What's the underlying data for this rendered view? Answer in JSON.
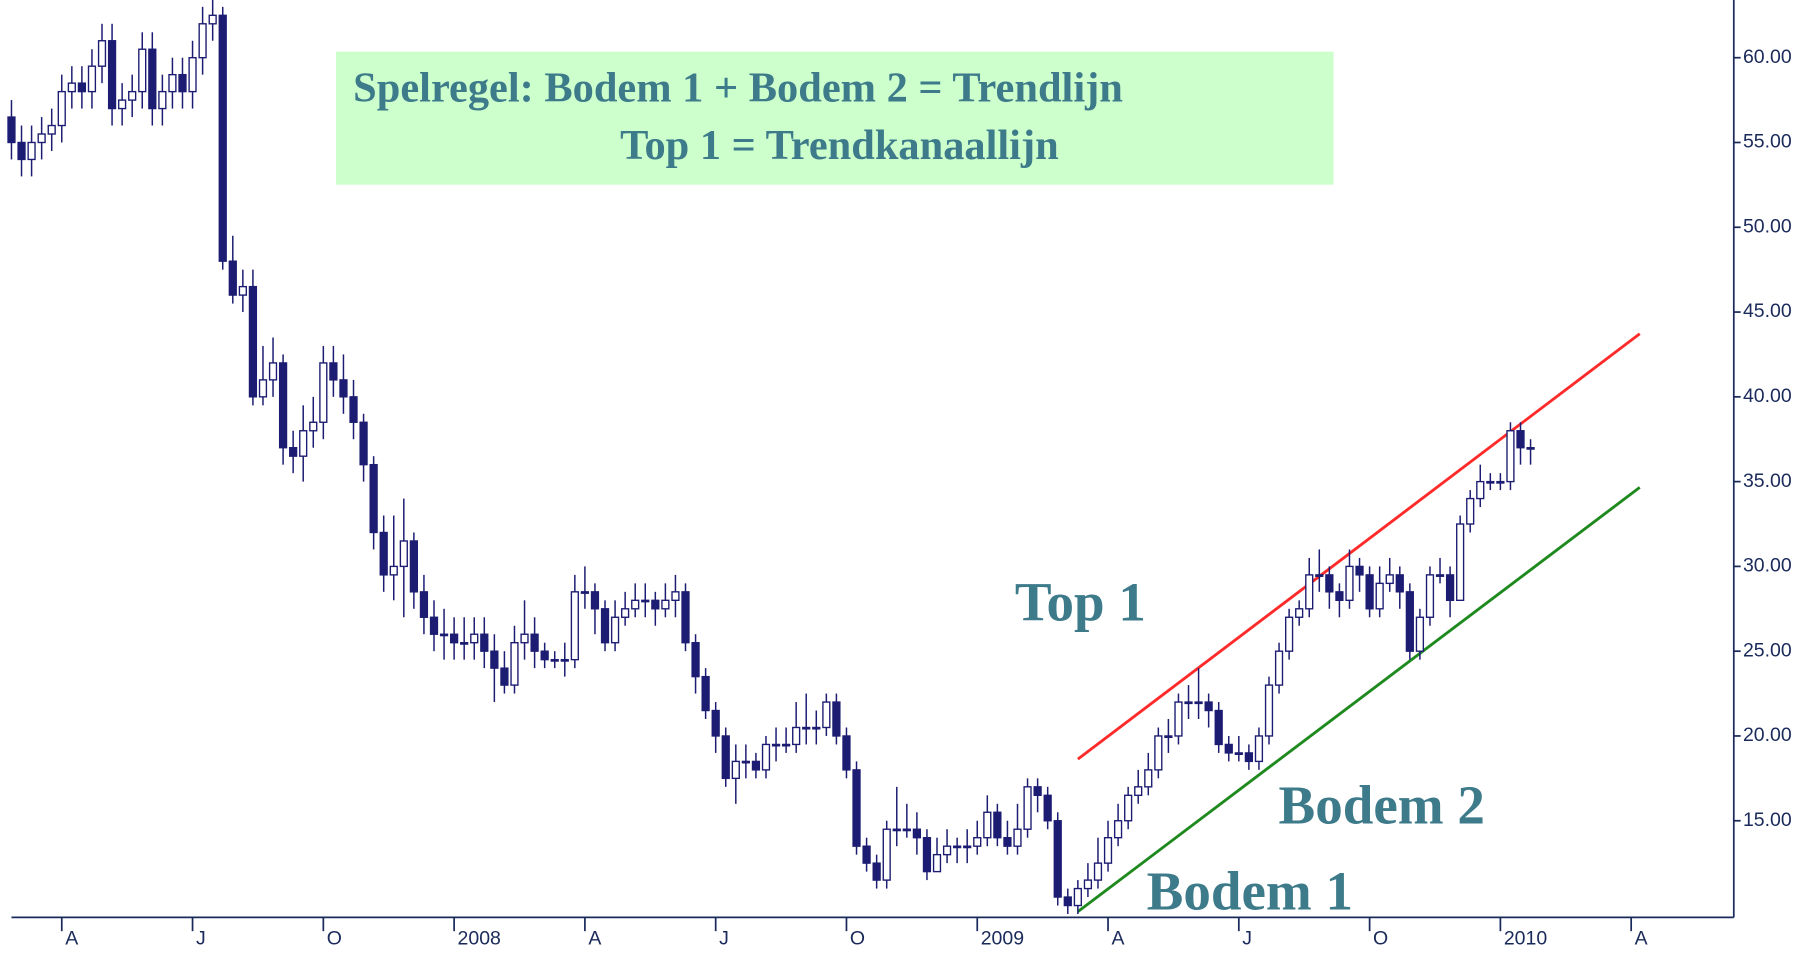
{
  "chart_data": {
    "type": "candlestick",
    "annotations": [
      "Spelregel: Bodem 1 + Bodem 2 = Trendlijn",
      "Top 1 = Trendkanaallijn",
      "Top 1",
      "Bodem 2",
      "Bodem 1"
    ],
    "up_color": "#ffffff",
    "down_color": "#1c1c72",
    "line_color": "#1c1c72",
    "ylim": [
      9.3,
      63.4
    ],
    "yticks": [
      {
        "value": 15,
        "label": "15.00"
      },
      {
        "value": 20,
        "label": "20.00"
      },
      {
        "value": 25,
        "label": "25.00"
      },
      {
        "value": 30,
        "label": "30.00"
      },
      {
        "value": 35,
        "label": "35.00"
      },
      {
        "value": 40,
        "label": "40.00"
      },
      {
        "value": 45,
        "label": "45.00"
      },
      {
        "value": 50,
        "label": "50.00"
      },
      {
        "value": 55,
        "label": "55.00"
      },
      {
        "value": 60,
        "label": "60.00"
      }
    ],
    "categories": [
      null,
      null,
      null,
      null,
      null,
      "A",
      null,
      null,
      null,
      null,
      null,
      null,
      null,
      null,
      null,
      null,
      null,
      null,
      "J",
      null,
      null,
      null,
      null,
      null,
      null,
      null,
      null,
      null,
      null,
      null,
      null,
      "O",
      null,
      null,
      null,
      null,
      null,
      null,
      null,
      null,
      null,
      null,
      null,
      null,
      "2008",
      null,
      null,
      null,
      null,
      null,
      null,
      null,
      null,
      null,
      null,
      null,
      null,
      "A",
      null,
      null,
      null,
      null,
      null,
      null,
      null,
      null,
      null,
      null,
      null,
      null,
      "J",
      null,
      null,
      null,
      null,
      null,
      null,
      null,
      null,
      null,
      null,
      null,
      null,
      "O",
      null,
      null,
      null,
      null,
      null,
      null,
      null,
      null,
      null,
      null,
      null,
      null,
      "2009",
      null,
      null,
      null,
      null,
      null,
      null,
      null,
      null,
      null,
      null,
      null,
      null,
      "A",
      null,
      null,
      null,
      null,
      null,
      null,
      null,
      null,
      null,
      null,
      null,
      null,
      "J",
      null,
      null,
      null,
      null,
      null,
      null,
      null,
      null,
      null,
      null,
      null,
      null,
      "O",
      null,
      null,
      null,
      null,
      null,
      null,
      null,
      null,
      null,
      null,
      null,
      null,
      "2010",
      null,
      null,
      null,
      null,
      null,
      null,
      null,
      null,
      null,
      null,
      null,
      null,
      "A",
      null,
      null,
      null,
      null,
      null,
      null,
      null,
      null,
      null,
      null
    ],
    "open": [
      56.5,
      55,
      54,
      55,
      55.5,
      56,
      58,
      58.5,
      58,
      59.5,
      61,
      57,
      57.5,
      58,
      60.5,
      57,
      58,
      59,
      58,
      60,
      62,
      62.5,
      48,
      46,
      46.5,
      40,
      41,
      42,
      37,
      36.5,
      38,
      38.5,
      42,
      41,
      40,
      38.5,
      36,
      32,
      29.5,
      30,
      31.5,
      28.5,
      27,
      26,
      26,
      25.5,
      25.5,
      26,
      25,
      24,
      23,
      25.5,
      26,
      25,
      24.5,
      24.5,
      24.5,
      28.5,
      28.5,
      27.5,
      25.5,
      27,
      27.5,
      28,
      28,
      27.5,
      28,
      28.5,
      25.5,
      23.5,
      21.5,
      20,
      17.5,
      18.5,
      18.5,
      18,
      19.5,
      19.5,
      19.5,
      20.5,
      20.5,
      20.5,
      22,
      20,
      18,
      13.5,
      12.5,
      11.5,
      14.5,
      14.5,
      14.5,
      14,
      12,
      13,
      13.5,
      13.5,
      13.5,
      14,
      15.5,
      14,
      13.5,
      14.5,
      17,
      16.5,
      15,
      10.5,
      10,
      11,
      11.5,
      12.5,
      14,
      15,
      16.5,
      17,
      18,
      20,
      20,
      22,
      22,
      22,
      21.5,
      19.5,
      19,
      19,
      18.5,
      20,
      23,
      25,
      27,
      27.5,
      29.5,
      29.5,
      28.5,
      28,
      30,
      29.5,
      27.5,
      29,
      29.5,
      28.5,
      25,
      27,
      29.5,
      29.5,
      28,
      32.5,
      34,
      35,
      35,
      35,
      38,
      37,
      null,
      null,
      null,
      null,
      null,
      null,
      null,
      null,
      null,
      null,
      null,
      null,
      null,
      null,
      null,
      null,
      null,
      null,
      null,
      null
    ],
    "high": [
      57.5,
      56,
      56,
      56.5,
      57,
      59,
      59.5,
      59.5,
      60.5,
      62,
      62,
      58.5,
      59,
      61.5,
      61.5,
      59,
      60,
      60,
      61,
      63,
      63.5,
      63,
      49.5,
      47.5,
      47.5,
      43,
      43.5,
      42.5,
      38,
      39.5,
      40,
      43,
      43,
      42.5,
      41,
      39,
      36.5,
      33,
      33,
      34,
      32,
      29.5,
      28,
      27.5,
      27,
      27,
      27,
      27,
      26,
      25,
      26.5,
      28,
      27,
      25.5,
      25,
      25.5,
      29.5,
      30,
      29,
      28,
      28,
      28.5,
      29,
      29,
      28.5,
      29,
      29.5,
      29,
      26,
      24,
      22,
      20.5,
      19.5,
      19.5,
      19,
      20,
      20.5,
      20.5,
      22,
      22.5,
      21.5,
      22.5,
      22.5,
      20.5,
      18.5,
      14,
      13,
      15,
      17,
      16,
      15.5,
      14.5,
      14,
      14.5,
      14,
      14.5,
      15,
      16.5,
      16,
      15,
      16,
      17.5,
      17.5,
      17,
      15.5,
      11,
      11.5,
      12.5,
      14,
      15,
      16,
      17,
      18,
      19,
      20.5,
      21,
      22.5,
      23,
      24,
      22.5,
      22,
      20,
      20,
      19.5,
      20.5,
      23.5,
      25.5,
      27.5,
      28,
      30.5,
      31,
      30,
      29,
      31,
      30.5,
      30,
      30,
      30.5,
      30,
      29,
      27.5,
      30,
      30.5,
      30,
      33,
      34.5,
      36,
      35.5,
      35.5,
      38.5,
      38.5,
      37.5,
      null,
      null,
      null,
      null,
      null,
      null,
      null,
      null,
      null,
      null,
      null,
      null,
      null,
      null,
      null,
      null,
      null,
      null,
      null,
      null
    ],
    "low": [
      54,
      53,
      53,
      54,
      54.5,
      55,
      57,
      57,
      57,
      58.5,
      56,
      56,
      56.5,
      57,
      56,
      56,
      57,
      57,
      57,
      59,
      61,
      47.5,
      45.5,
      45,
      39.5,
      39.5,
      40,
      36,
      35.5,
      35,
      37,
      37.5,
      40,
      39,
      37.5,
      35,
      31,
      28.5,
      28,
      27,
      27.5,
      26,
      25,
      24.5,
      24.5,
      24.5,
      24.5,
      24,
      22,
      22.5,
      22.5,
      24.5,
      24,
      24,
      24,
      23.5,
      24,
      27.5,
      26,
      25,
      25,
      26.5,
      27,
      27,
      26.5,
      27,
      27,
      25,
      22.5,
      21,
      19,
      17,
      16,
      17.5,
      17.5,
      17.5,
      18.5,
      19,
      19,
      19.5,
      19.5,
      20,
      19.5,
      17.5,
      13,
      12,
      11,
      11,
      13.5,
      14,
      13,
      11.5,
      12,
      12.5,
      12.5,
      12.5,
      13,
      13.5,
      13.5,
      13,
      13,
      14,
      15.5,
      14.5,
      10,
      9.5,
      9.5,
      10.5,
      11,
      12,
      13.5,
      14.5,
      16,
      16.5,
      17.5,
      19,
      19.5,
      21,
      21,
      20.5,
      19,
      18.5,
      18.5,
      18,
      18,
      19.5,
      22.5,
      24.5,
      26.5,
      27,
      28.5,
      27.5,
      27,
      27.5,
      28.5,
      27,
      27,
      28.5,
      27.5,
      24.5,
      24.5,
      26.5,
      29,
      27,
      28,
      32,
      33.5,
      34.5,
      34.5,
      34.5,
      36,
      36,
      null,
      null,
      null,
      null,
      null,
      null,
      null,
      null,
      null,
      null,
      null,
      null,
      null,
      null,
      null,
      null,
      null,
      null,
      null,
      null
    ],
    "close": [
      55,
      54,
      55,
      55.5,
      56,
      58,
      58.5,
      58,
      59.5,
      61,
      57,
      57.5,
      58,
      60.5,
      57,
      58,
      59,
      58,
      60,
      62,
      62.5,
      48,
      46,
      46.5,
      40,
      41,
      42,
      37,
      36.5,
      38,
      38.5,
      42,
      41,
      40,
      38.5,
      36,
      32,
      29.5,
      30,
      31.5,
      28.5,
      27,
      26,
      26,
      25.5,
      25.5,
      26,
      25,
      24,
      23,
      25.5,
      26,
      25,
      24.5,
      24.5,
      24.5,
      28.5,
      28.5,
      27.5,
      25.5,
      27,
      27.5,
      28,
      28,
      27.5,
      28,
      28.5,
      25.5,
      23.5,
      21.5,
      20,
      17.5,
      18.5,
      18.5,
      18,
      19.5,
      19.5,
      19.5,
      20.5,
      20.5,
      20.5,
      22,
      20,
      18,
      13.5,
      12.5,
      11.5,
      14.5,
      14.5,
      14.5,
      14,
      12,
      13,
      13.5,
      13.5,
      13.5,
      14,
      15.5,
      14,
      13.5,
      14.5,
      17,
      16.5,
      15,
      10.5,
      10,
      11,
      11.5,
      12.5,
      14,
      15,
      16.5,
      17,
      18,
      20,
      20,
      22,
      22,
      22,
      21.5,
      19.5,
      19,
      19,
      18.5,
      20,
      23,
      25,
      27,
      27.5,
      29.5,
      29.5,
      28.5,
      28,
      30,
      29.5,
      27.5,
      29,
      29.5,
      28.5,
      25,
      27,
      29.5,
      29.5,
      28,
      32.5,
      34,
      35,
      35,
      35,
      38,
      37,
      37,
      null,
      null,
      null,
      null,
      null,
      null,
      null,
      null,
      null,
      null,
      null,
      null,
      null,
      null,
      null,
      null,
      null,
      null,
      null,
      null
    ]
  }
}
